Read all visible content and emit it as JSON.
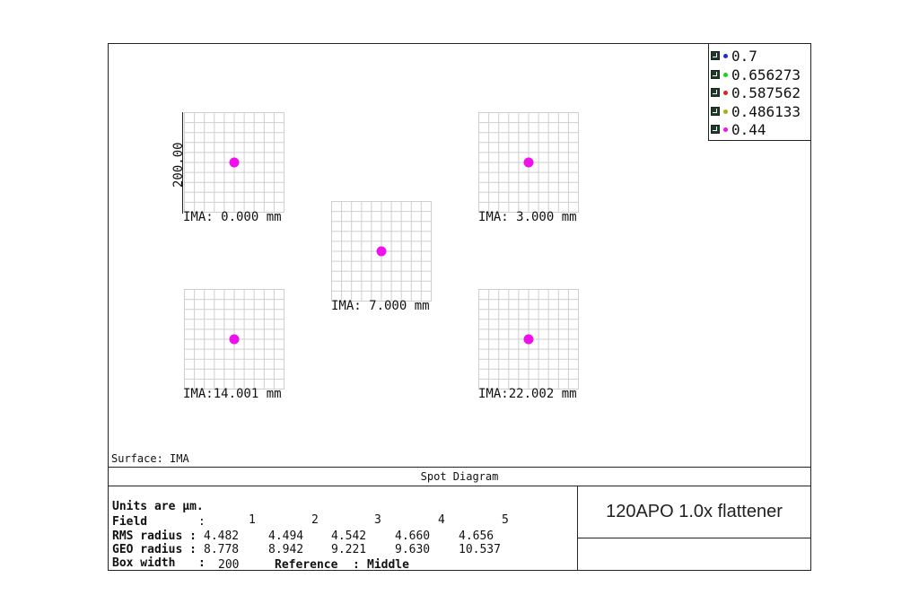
{
  "legend": [
    {
      "label": "0.7",
      "color": "#1f2bd6"
    },
    {
      "label": "0.656273",
      "color": "#22cc22"
    },
    {
      "label": "0.587562",
      "color": "#dd2222"
    },
    {
      "label": "0.486133",
      "color": "#aaaa22"
    },
    {
      "label": "0.44",
      "color": "#ee11ee"
    }
  ],
  "scale_label": "200.00",
  "fields": [
    {
      "label": "IMA: 0.000 mm"
    },
    {
      "label": "IMA: 3.000 mm"
    },
    {
      "label": "IMA: 7.000 mm"
    },
    {
      "label": "IMA:14.001 mm"
    },
    {
      "label": "IMA:22.002 mm"
    }
  ],
  "spot_color": "#ee11ee",
  "surface_label": "Surface: IMA",
  "title": "Spot Diagram",
  "description": "120APO 1.0x flattener",
  "info": {
    "units": "Units are µm.",
    "field_label": "Field",
    "field_sep": ":",
    "field_values": [
      "1",
      "2",
      "3",
      "4",
      "5"
    ],
    "rms_label": "RMS radius :",
    "rms_values": [
      "4.482",
      "4.494",
      "4.542",
      "4.660",
      "4.656"
    ],
    "geo_label": "GEO radius :",
    "geo_values": [
      "8.778",
      "8.942",
      "9.221",
      "9.630",
      "10.537"
    ],
    "box_label": "Box width",
    "box_sep": ":",
    "box_value": "200",
    "reference_label": "Reference",
    "reference_sep": ":",
    "reference_value": "Middle"
  }
}
